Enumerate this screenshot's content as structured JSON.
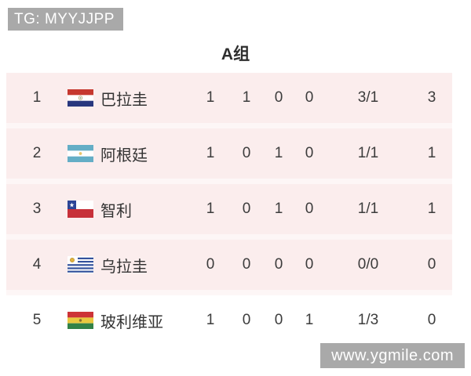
{
  "title": "A组",
  "watermarks": {
    "top": "TG: MYYJJPP",
    "bottom": "www.ygmile.com"
  },
  "colors": {
    "row_pink": "#fbeded",
    "row_gap": "#fdf6f6",
    "watermark_bg": "#a9a9a9",
    "watermark_text": "#ffffff",
    "text_dark": "#3c3c3c"
  },
  "table": {
    "rows": [
      {
        "rank": "1",
        "flag": "paraguay",
        "team": "巴拉圭",
        "played": "1",
        "won": "1",
        "drawn": "0",
        "lost": "0",
        "goals": "3/1",
        "points": "3"
      },
      {
        "rank": "2",
        "flag": "argentina",
        "team": "阿根廷",
        "played": "1",
        "won": "0",
        "drawn": "1",
        "lost": "0",
        "goals": "1/1",
        "points": "1"
      },
      {
        "rank": "3",
        "flag": "chile",
        "team": "智利",
        "played": "1",
        "won": "0",
        "drawn": "1",
        "lost": "0",
        "goals": "1/1",
        "points": "1"
      },
      {
        "rank": "4",
        "flag": "uruguay",
        "team": "乌拉圭",
        "played": "0",
        "won": "0",
        "drawn": "0",
        "lost": "0",
        "goals": "0/0",
        "points": "0"
      },
      {
        "rank": "5",
        "flag": "bolivia",
        "team": "玻利维亚",
        "played": "1",
        "won": "0",
        "drawn": "0",
        "lost": "1",
        "goals": "1/3",
        "points": "0"
      }
    ]
  }
}
